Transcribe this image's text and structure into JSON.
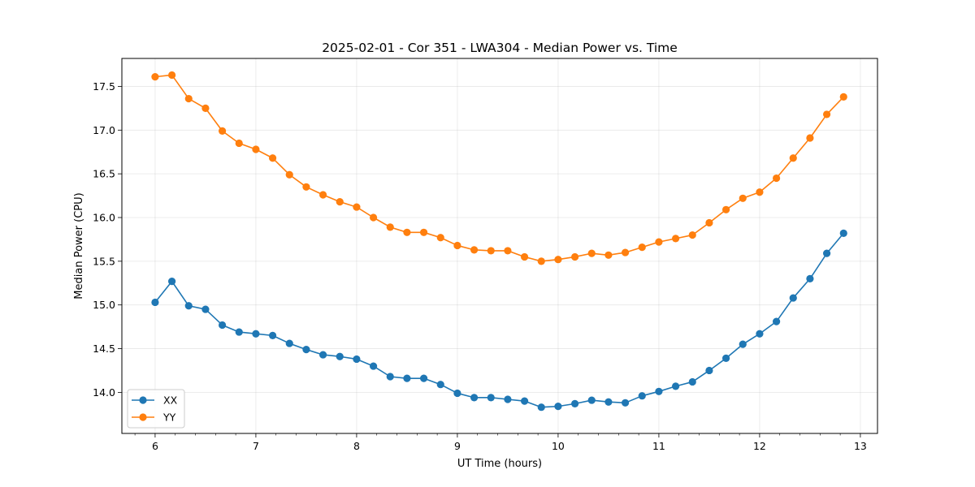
{
  "chart_data": {
    "type": "line",
    "title": "2025-02-01 - Cor 351 - LWA304 - Median Power vs. Time",
    "xlabel": "UT Time (hours)",
    "ylabel": "Median Power (CPU)",
    "xlim": [
      5.67,
      13.17
    ],
    "ylim": [
      13.53,
      17.82
    ],
    "xticks": [
      6,
      7,
      8,
      9,
      10,
      11,
      12,
      13
    ],
    "xtick_labels": [
      "6",
      "7",
      "8",
      "9",
      "10",
      "11",
      "12",
      "13"
    ],
    "yticks": [
      14.0,
      14.5,
      15.0,
      15.5,
      16.0,
      16.5,
      17.0,
      17.5
    ],
    "ytick_labels": [
      "14.0",
      "14.5",
      "15.0",
      "15.5",
      "16.0",
      "16.5",
      "17.0",
      "17.5"
    ],
    "grid": true,
    "legend_position": "lower-left",
    "x": [
      6.0,
      6.1667,
      6.3333,
      6.5,
      6.6667,
      6.8333,
      7.0,
      7.1667,
      7.3333,
      7.5,
      7.6667,
      7.8333,
      8.0,
      8.1667,
      8.3333,
      8.5,
      8.6667,
      8.8333,
      9.0,
      9.1667,
      9.3333,
      9.5,
      9.6667,
      9.8333,
      10.0,
      10.1667,
      10.3333,
      10.5,
      10.6667,
      10.8333,
      11.0,
      11.1667,
      11.3333,
      11.5,
      11.6667,
      11.8333,
      12.0,
      12.1667,
      12.3333,
      12.5,
      12.6667,
      12.8333
    ],
    "series": [
      {
        "name": "XX",
        "color": "#1f77b4",
        "values": [
          15.03,
          15.27,
          14.99,
          14.95,
          14.77,
          14.69,
          14.67,
          14.65,
          14.56,
          14.49,
          14.43,
          14.41,
          14.38,
          14.3,
          14.18,
          14.16,
          14.16,
          14.09,
          13.99,
          13.94,
          13.94,
          13.92,
          13.9,
          13.83,
          13.84,
          13.87,
          13.91,
          13.89,
          13.88,
          13.96,
          14.01,
          14.07,
          14.12,
          14.25,
          14.39,
          14.55,
          14.67,
          14.81,
          15.08,
          15.3,
          15.59,
          15.82
        ]
      },
      {
        "name": "YY",
        "color": "#ff7f0e",
        "values": [
          17.61,
          17.63,
          17.36,
          17.25,
          16.99,
          16.85,
          16.78,
          16.68,
          16.49,
          16.35,
          16.26,
          16.18,
          16.12,
          16.0,
          15.89,
          15.83,
          15.83,
          15.77,
          15.68,
          15.63,
          15.62,
          15.62,
          15.55,
          15.5,
          15.52,
          15.55,
          15.59,
          15.57,
          15.6,
          15.66,
          15.72,
          15.76,
          15.8,
          15.94,
          16.09,
          16.22,
          16.29,
          16.45,
          16.68,
          16.91,
          17.18,
          17.38
        ]
      }
    ]
  }
}
